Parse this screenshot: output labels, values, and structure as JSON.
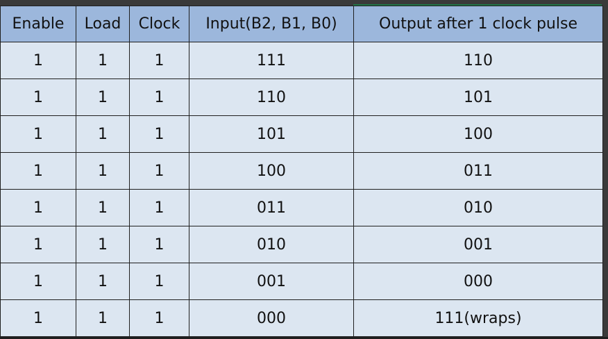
{
  "table": {
    "headers": [
      "Enable",
      "Load",
      "Clock",
      "Input(B2, B1, B0)",
      "Output after 1 clock pulse"
    ],
    "rows": [
      [
        "1",
        "1",
        "1",
        "111",
        "110"
      ],
      [
        "1",
        "1",
        "1",
        "110",
        "101"
      ],
      [
        "1",
        "1",
        "1",
        "101",
        "100"
      ],
      [
        "1",
        "1",
        "1",
        "100",
        "011"
      ],
      [
        "1",
        "1",
        "1",
        "011",
        "010"
      ],
      [
        "1",
        "1",
        "1",
        "010",
        "001"
      ],
      [
        "1",
        "1",
        "1",
        "001",
        "000"
      ],
      [
        "1",
        "1",
        "1",
        "000",
        "111(wraps)"
      ]
    ]
  },
  "colors": {
    "header_fill": "#9cb7dc",
    "cell_fill": "#dce6f1",
    "border": "#1f1f1f",
    "selection_accent": "#217346"
  }
}
